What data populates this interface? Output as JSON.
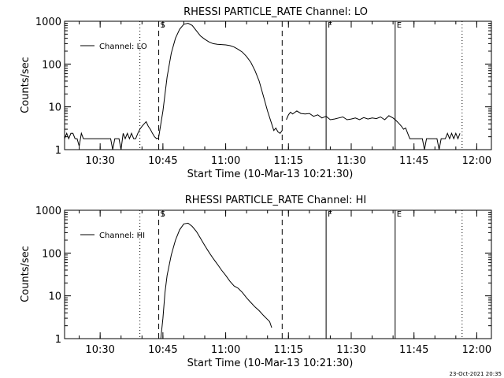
{
  "footer": {
    "timestamp": "23-Oct-2021 20:35"
  },
  "chart_data": [
    {
      "type": "line",
      "title": "RHESSI PARTICLE_RATE Channel: LO",
      "xlabel": "Start Time (10-Mar-13 10:21:30)",
      "ylabel": "Counts/sec",
      "yscale": "log",
      "ylim": [
        1,
        1000
      ],
      "xlim": [
        "10:21:30",
        "12:03:30"
      ],
      "x_ticks": [
        "10:30",
        "10:45",
        "11:00",
        "11:15",
        "11:30",
        "11:45",
        "12:00"
      ],
      "y_ticks": [
        "1",
        "10",
        "100",
        "1000"
      ],
      "legend": {
        "position": "top-left",
        "entries": [
          "Channel: LO"
        ]
      },
      "markers": [
        {
          "time": "10:39:30",
          "style": "dotted",
          "label": ""
        },
        {
          "time": "10:44:00",
          "style": "dashed",
          "label": "S"
        },
        {
          "time": "11:13:30",
          "style": "dashed",
          "label": ""
        },
        {
          "time": "11:24:00",
          "style": "solid",
          "label": "F"
        },
        {
          "time": "11:40:30",
          "style": "solid",
          "label": "E"
        },
        {
          "time": "11:56:30",
          "style": "dotted",
          "label": ""
        }
      ],
      "segments": [
        {
          "name": "Channel: LO",
          "x": [
            "10:21:30",
            "10:22:00",
            "10:22:30",
            "10:23:00",
            "10:23:30",
            "10:24:00",
            "10:24:30",
            "10:25:00",
            "10:25:30",
            "10:26:00",
            "10:26:30",
            "10:27:00",
            "10:27:30",
            "10:28:00",
            "10:28:30",
            "10:29:00",
            "10:29:30",
            "10:30:00",
            "10:30:30",
            "10:31:00",
            "10:31:30",
            "10:32:00",
            "10:32:30",
            "10:33:00",
            "10:33:30",
            "10:34:00",
            "10:34:30",
            "10:35:00",
            "10:35:30",
            "10:36:00",
            "10:36:30",
            "10:37:00",
            "10:37:30",
            "10:38:00",
            "10:38:30",
            "10:39:00",
            "10:39:30",
            "10:40:00",
            "10:40:30",
            "10:41:00",
            "10:41:30",
            "10:42:00",
            "10:42:30",
            "10:43:00",
            "10:43:30",
            "10:44:00"
          ],
          "y": [
            1.8,
            2.4,
            1.8,
            2.4,
            2.4,
            1.8,
            1.8,
            1.2,
            2.4,
            1.8,
            1.8,
            1.8,
            1.8,
            1.8,
            1.8,
            1.8,
            1.8,
            1.8,
            1.8,
            1.8,
            1.8,
            1.8,
            1.8,
            1.0,
            1.8,
            1.8,
            1.8,
            1.0,
            2.4,
            1.8,
            2.4,
            1.8,
            2.4,
            1.8,
            1.8,
            2.4,
            3.0,
            3.5,
            4.0,
            4.5,
            3.5,
            3.0,
            2.4,
            2.0,
            1.8,
            1.9
          ]
        },
        {
          "name": "Channel: LO",
          "x": [
            "10:44:00",
            "10:45:00",
            "10:46:00",
            "10:47:00",
            "10:48:00",
            "10:49:00",
            "10:50:00",
            "10:51:00",
            "10:52:00",
            "10:53:00",
            "10:54:00",
            "10:55:00",
            "10:56:00",
            "10:57:00",
            "10:58:00",
            "10:59:00",
            "11:00:00",
            "11:01:00",
            "11:02:00",
            "11:03:00",
            "11:04:00",
            "11:05:00",
            "11:06:00",
            "11:07:00",
            "11:08:00",
            "11:09:00",
            "11:10:00",
            "11:11:00",
            "11:11:30",
            "11:12:00",
            "11:12:30",
            "11:13:00",
            "11:13:30"
          ],
          "y": [
            2.0,
            8,
            50,
            180,
            400,
            650,
            850,
            900,
            800,
            600,
            450,
            380,
            330,
            300,
            290,
            285,
            280,
            270,
            250,
            220,
            190,
            150,
            110,
            70,
            40,
            18,
            8,
            4,
            2.8,
            3.2,
            2.6,
            2.4,
            2.8
          ]
        },
        {
          "name": "Channel: LO",
          "x": [
            "11:14:30",
            "11:15:00",
            "11:15:30",
            "11:16:00",
            "11:17:00",
            "11:18:00",
            "11:19:00",
            "11:20:00",
            "11:21:00",
            "11:22:00",
            "11:23:00",
            "11:24:00",
            "11:25:00",
            "11:26:00",
            "11:27:00",
            "11:28:00",
            "11:29:00",
            "11:30:00",
            "11:31:00",
            "11:32:00",
            "11:33:00",
            "11:34:00",
            "11:35:00",
            "11:36:00",
            "11:37:00",
            "11:38:00",
            "11:39:00",
            "11:40:00",
            "11:40:30"
          ],
          "y": [
            5.0,
            6.5,
            7.5,
            6.8,
            8.0,
            7.0,
            6.8,
            7.0,
            6.0,
            6.5,
            5.5,
            6.0,
            5.0,
            5.2,
            5.5,
            5.8,
            5.0,
            5.2,
            5.5,
            5.0,
            5.6,
            5.2,
            5.5,
            5.3,
            5.8,
            5.0,
            6.2,
            5.5,
            5.0
          ]
        },
        {
          "name": "Channel: LO",
          "x": [
            "11:40:30",
            "11:41:00",
            "11:41:30",
            "11:42:00",
            "11:42:30",
            "11:43:00",
            "11:43:30",
            "11:44:00",
            "11:44:30",
            "11:45:00",
            "11:45:30",
            "11:46:00",
            "11:46:30",
            "11:47:00",
            "11:47:30",
            "11:48:00",
            "11:48:30",
            "11:49:00",
            "11:49:30",
            "11:50:00",
            "11:50:30",
            "11:51:00",
            "11:51:30",
            "11:52:00",
            "11:52:30",
            "11:53:00",
            "11:53:30",
            "11:54:00",
            "11:54:30",
            "11:55:00",
            "11:55:30",
            "11:56:00"
          ],
          "y": [
            5.0,
            4.5,
            4.0,
            3.5,
            3.0,
            3.2,
            2.4,
            1.8,
            1.8,
            1.8,
            1.8,
            1.8,
            1.8,
            1.8,
            1.0,
            1.8,
            1.8,
            1.8,
            1.8,
            1.8,
            1.8,
            1.0,
            1.8,
            1.8,
            1.8,
            2.4,
            1.8,
            2.4,
            1.8,
            2.4,
            1.8,
            2.4
          ]
        }
      ]
    },
    {
      "type": "line",
      "title": "RHESSI PARTICLE_RATE Channel: HI",
      "xlabel": "Start Time (10-Mar-13 10:21:30)",
      "ylabel": "Counts/sec",
      "yscale": "log",
      "ylim": [
        1,
        1000
      ],
      "xlim": [
        "10:21:30",
        "12:03:30"
      ],
      "x_ticks": [
        "10:30",
        "10:45",
        "11:00",
        "11:15",
        "11:30",
        "11:45",
        "12:00"
      ],
      "y_ticks": [
        "1",
        "10",
        "100",
        "1000"
      ],
      "legend": {
        "position": "top-left",
        "entries": [
          "Channel: HI"
        ]
      },
      "markers": [
        {
          "time": "10:39:30",
          "style": "dotted",
          "label": ""
        },
        {
          "time": "10:44:00",
          "style": "dashed",
          "label": "S"
        },
        {
          "time": "11:13:30",
          "style": "dashed",
          "label": ""
        },
        {
          "time": "11:24:00",
          "style": "solid",
          "label": "F"
        },
        {
          "time": "11:40:30",
          "style": "solid",
          "label": "E"
        },
        {
          "time": "11:56:30",
          "style": "dotted",
          "label": ""
        }
      ],
      "segments": [
        {
          "name": "Channel: HI",
          "x": [
            "10:44:30",
            "10:45:00",
            "10:45:30",
            "10:46:00",
            "10:47:00",
            "10:48:00",
            "10:49:00",
            "10:50:00",
            "10:51:00",
            "10:52:00",
            "10:53:00",
            "10:54:00",
            "10:55:00",
            "10:56:00",
            "10:57:00",
            "10:58:00",
            "10:59:00",
            "11:00:00",
            "11:01:00",
            "11:02:00",
            "11:03:00",
            "11:04:00",
            "11:05:00",
            "11:06:00",
            "11:07:00",
            "11:08:00",
            "11:09:00",
            "11:10:00",
            "11:10:30",
            "11:11:00"
          ],
          "y": [
            1.0,
            3,
            12,
            30,
            90,
            200,
            350,
            480,
            500,
            420,
            320,
            220,
            150,
            105,
            75,
            55,
            40,
            30,
            22,
            17,
            15,
            12,
            9,
            7,
            5.5,
            4.5,
            3.5,
            2.8,
            2.5,
            1.8
          ]
        }
      ]
    }
  ]
}
